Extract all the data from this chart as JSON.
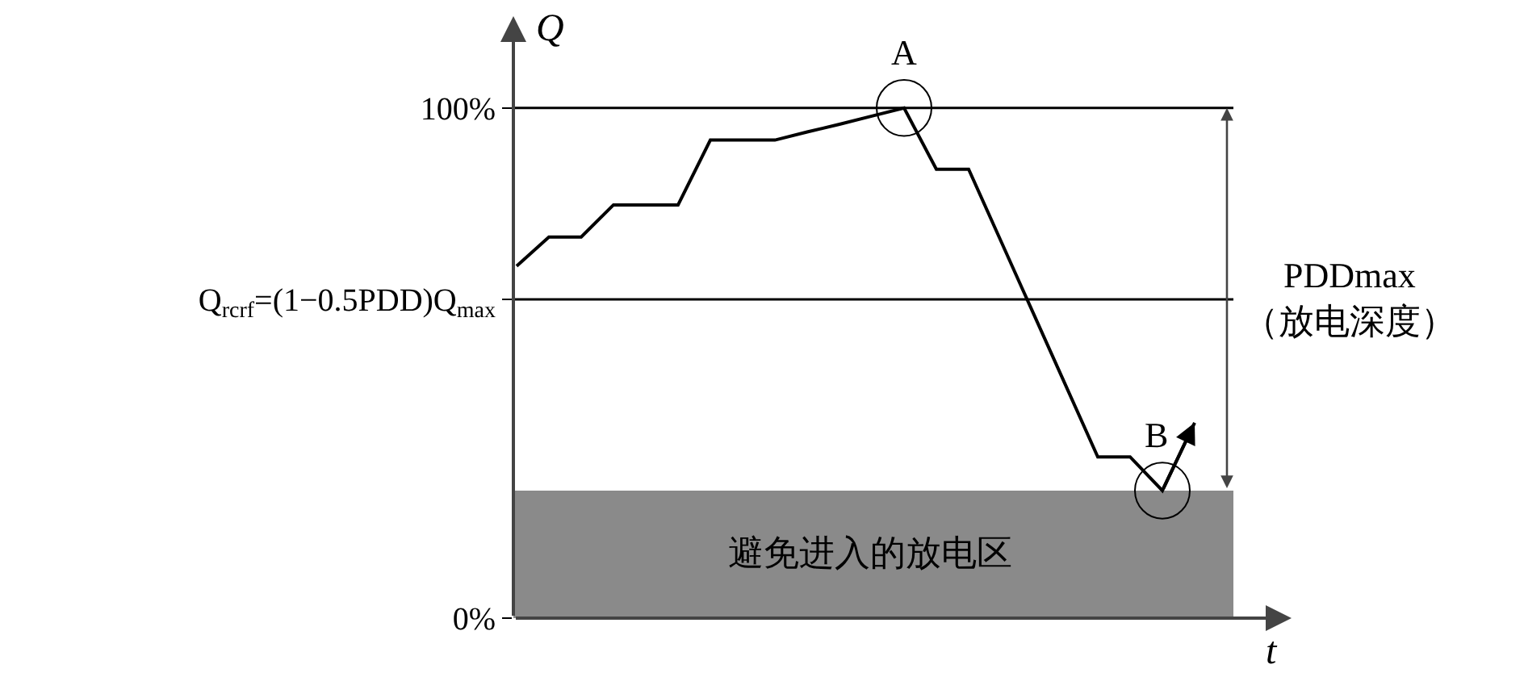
{
  "chart_data": {
    "type": "line",
    "ylabel": "Q",
    "xlabel": "t",
    "tick_labels": "y",
    "grid": false,
    "marker": "none",
    "line_style": "solid",
    "ylim": [
      0,
      118
    ],
    "yticks": [
      {
        "value": 0,
        "label": "0%"
      },
      {
        "value": 62.5,
        "label": "Q$_{rcrf}$=(1−0.5PDD)Q$_{max}$"
      },
      {
        "value": 100,
        "label": "100%"
      }
    ],
    "categories": [
      null,
      null,
      null,
      null,
      null,
      null,
      null,
      null,
      null,
      null,
      null,
      null,
      null,
      null,
      null,
      null,
      null,
      null,
      null,
      null,
      null,
      null,
      null
    ],
    "series": [
      {
        "color": "#000000",
        "values": [
          69,
          74.7,
          74.7,
          81,
          81,
          81,
          93.7,
          93.7,
          93.7,
          95.3,
          96.8,
          98.4,
          100,
          88,
          88,
          73.9,
          59.8,
          45.7,
          31.6,
          31.6,
          25,
          38.3,
          null
        ]
      }
    ],
    "ref_lines": [
      {
        "axis": "y",
        "value": 100,
        "color": "#000000"
      },
      {
        "axis": "y",
        "value": 62.5,
        "color": "#000000"
      }
    ],
    "bands": [
      {
        "axis": "y",
        "from": 0,
        "to": 25,
        "label": "避免进入的放电区",
        "color": "#8a8a8a"
      }
    ],
    "annotations": [
      {
        "text": "A",
        "y": 100
      },
      {
        "text": "B",
        "y": 25
      },
      "PDDmax\n（放电深度）"
    ]
  }
}
